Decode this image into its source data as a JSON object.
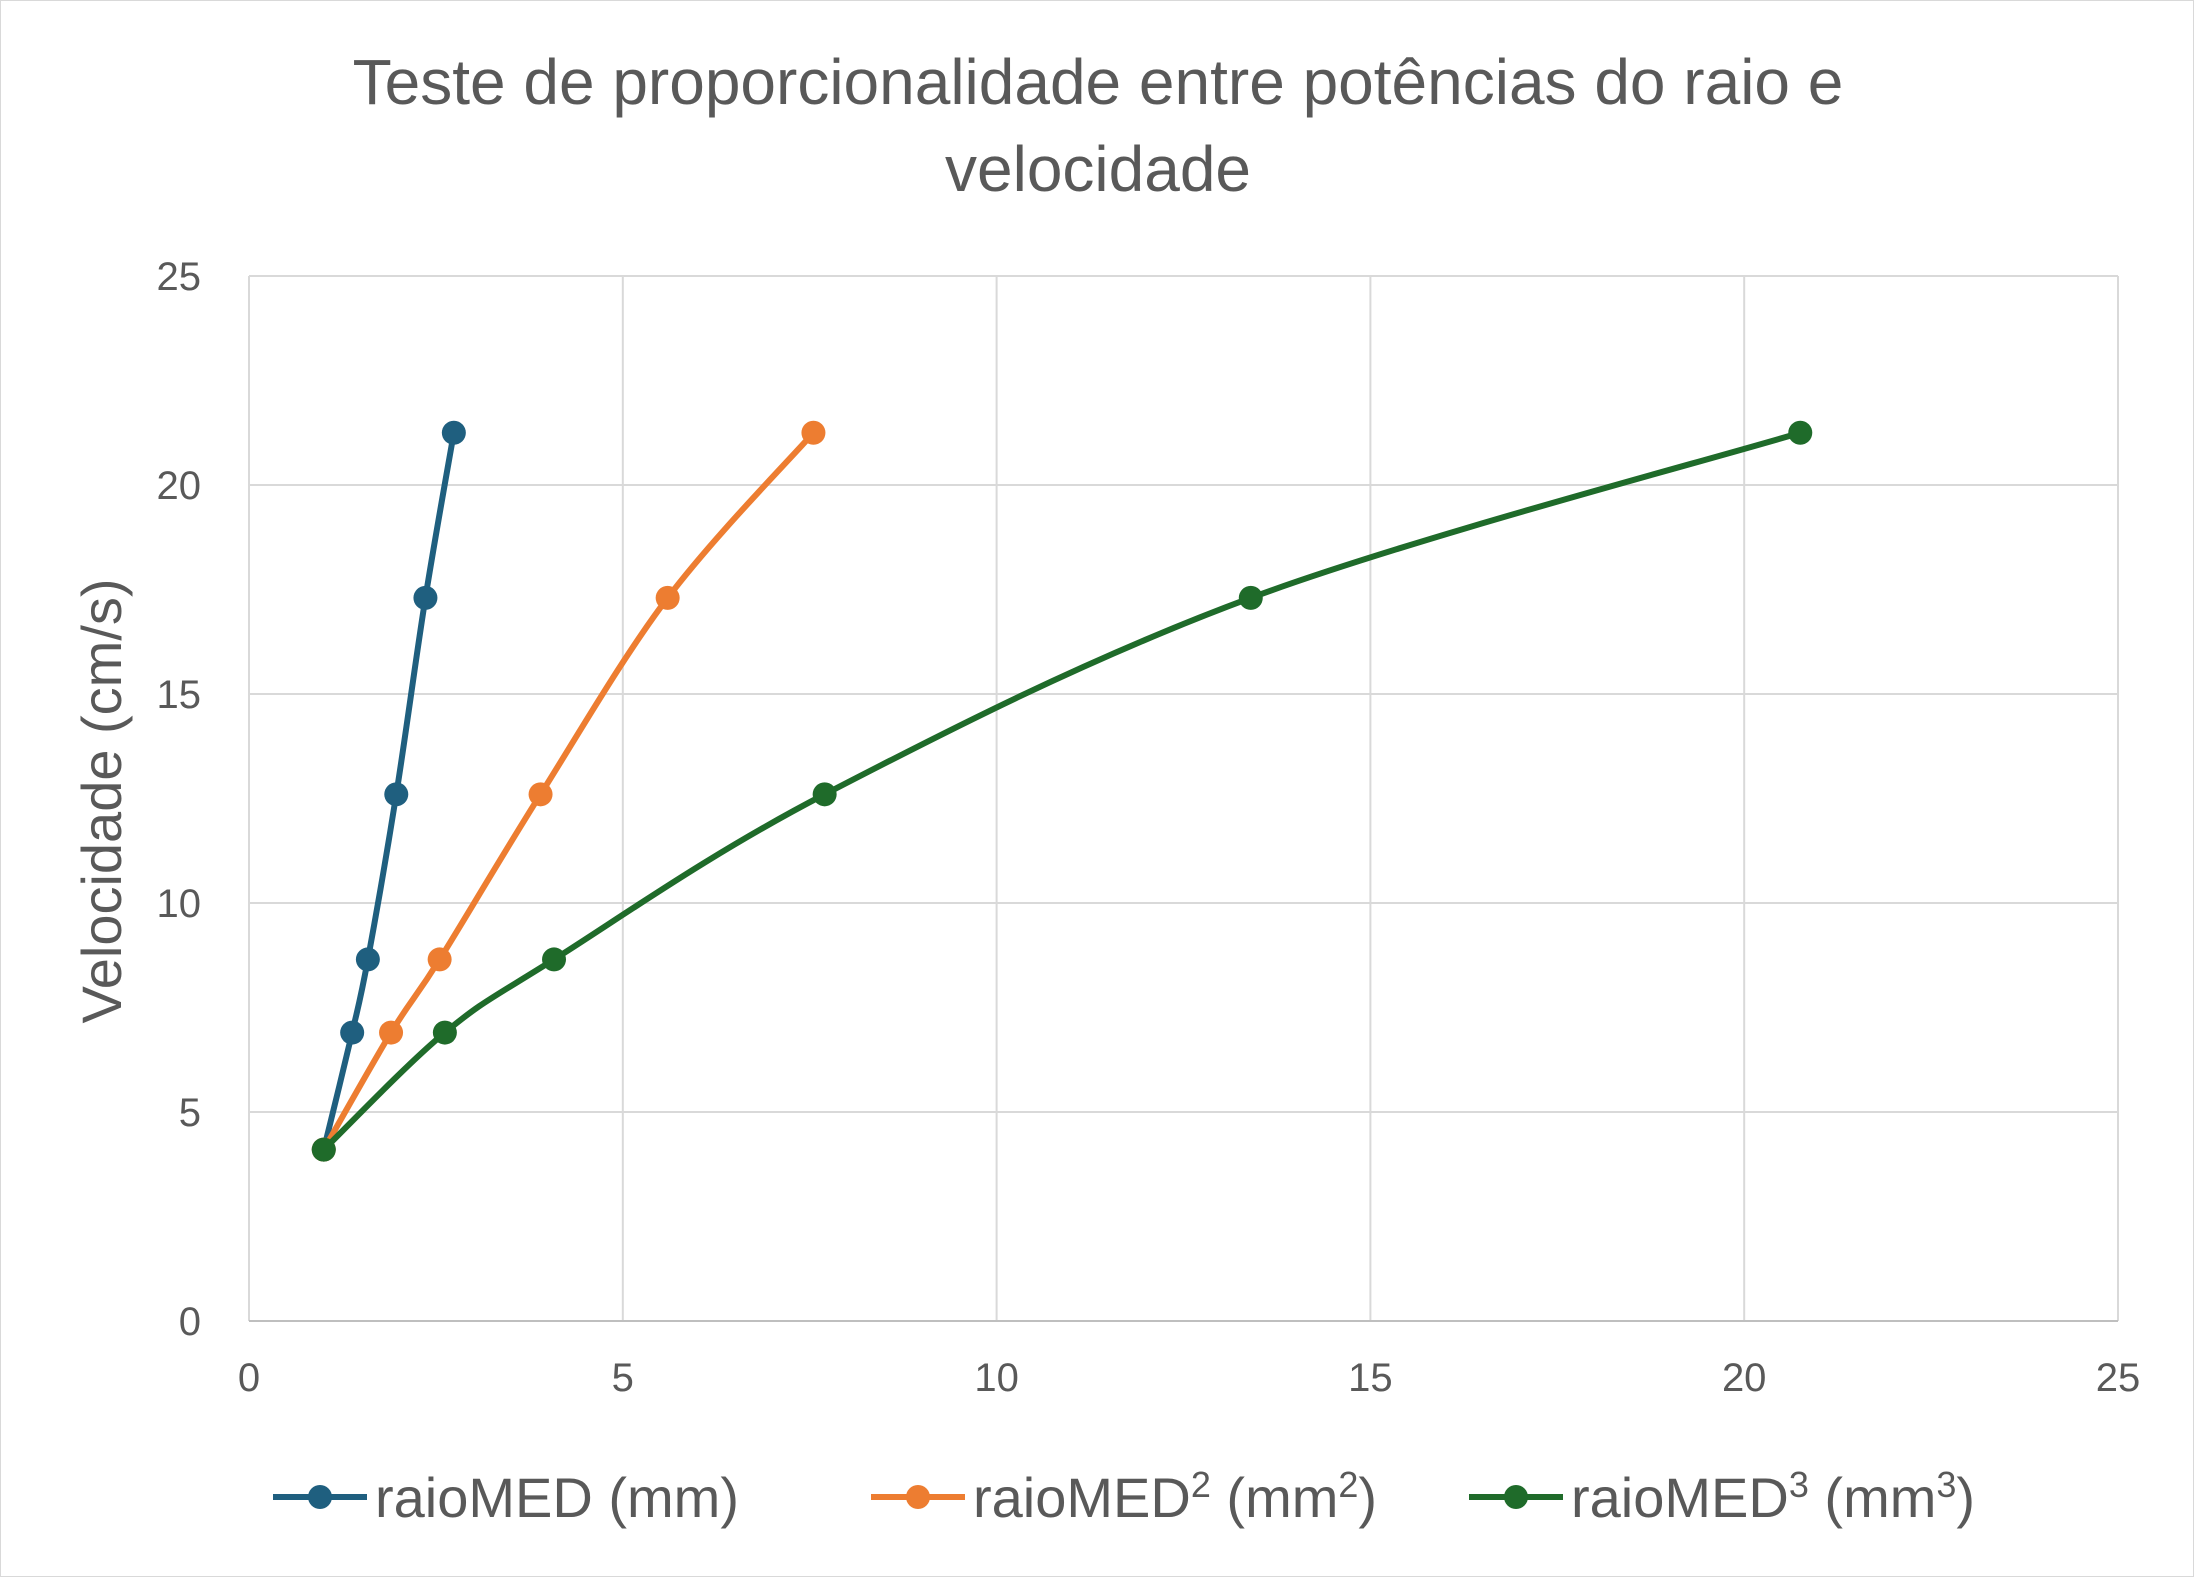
{
  "chart_data": {
    "type": "line",
    "title": "Teste de proporcionalidade entre potências do raio e velocidade",
    "title_lines": [
      "Teste de proporcionalidade entre potências do raio e",
      "velocidade"
    ],
    "xlabel": "",
    "ylabel": "Velocidade (cm/s)",
    "xlim": [
      0,
      25
    ],
    "ylim": [
      0,
      25
    ],
    "xticks": [
      0,
      5,
      10,
      15,
      20,
      25
    ],
    "yticks": [
      0,
      5,
      10,
      15,
      20,
      25
    ],
    "grid": true,
    "legend_position": "bottom",
    "smooth": true,
    "series": [
      {
        "name": "raioMED (mm)",
        "legend_base": "raioMED",
        "legend_sup": "",
        "legend_unit_base": "(mm",
        "legend_unit_sup": "",
        "legend_close": ")",
        "color": "#1f5f7f",
        "x": [
          1.0,
          1.38,
          1.59,
          1.97,
          2.36,
          2.74
        ],
        "y": [
          4.1,
          6.9,
          8.65,
          12.6,
          17.3,
          21.25
        ]
      },
      {
        "name": "raioMED2 (mm2)",
        "legend_base": "raioMED",
        "legend_sup": "2",
        "legend_unit_base": "(mm",
        "legend_unit_sup": "2",
        "legend_close": ")",
        "color": "#ed7d31",
        "x": [
          1.0,
          1.9,
          2.55,
          3.9,
          5.6,
          7.55
        ],
        "y": [
          4.1,
          6.9,
          8.65,
          12.6,
          17.3,
          21.25
        ]
      },
      {
        "name": "raioMED3 (mm3)",
        "legend_base": "raioMED",
        "legend_sup": "3",
        "legend_unit_base": "(mm",
        "legend_unit_sup": "3",
        "legend_close": ")",
        "color": "#1f6b2a",
        "x": [
          1.0,
          2.62,
          4.08,
          7.7,
          13.4,
          20.75
        ],
        "y": [
          4.1,
          6.9,
          8.65,
          12.6,
          17.3,
          21.25
        ]
      }
    ]
  }
}
